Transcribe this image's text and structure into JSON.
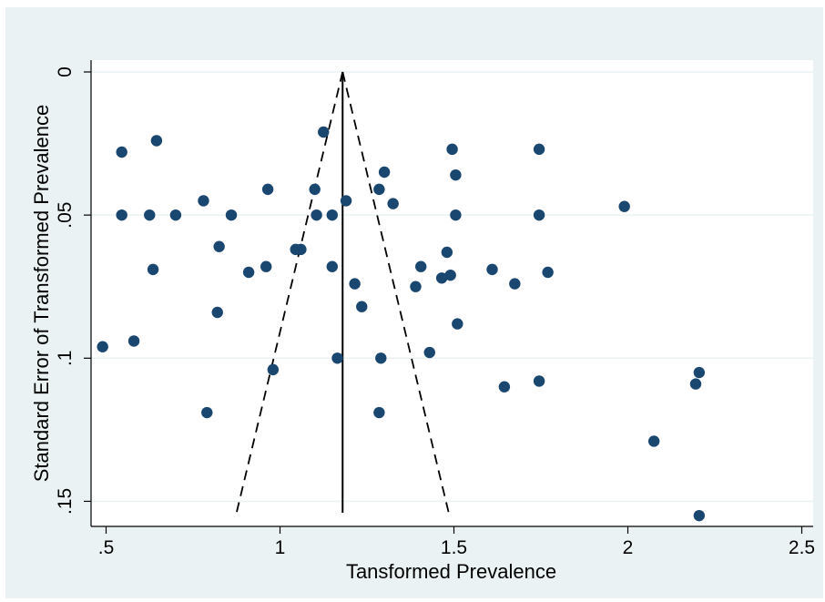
{
  "chart_data": {
    "type": "scatter",
    "title": "",
    "xlabel": "Tansformed Prevalence",
    "ylabel": "Standard Error of Transformed Prevalence",
    "xlim": [
      0.5,
      2.5
    ],
    "ylim": [
      0,
      0.155
    ],
    "y_reversed": true,
    "x_ticks": [
      {
        "value": 0.5,
        "label": ".5"
      },
      {
        "value": 1,
        "label": "1"
      },
      {
        "value": 1.5,
        "label": "1.5"
      },
      {
        "value": 2,
        "label": "2"
      },
      {
        "value": 2.5,
        "label": "2.5"
      }
    ],
    "y_ticks": [
      {
        "value": 0,
        "label": "0"
      },
      {
        "value": 0.05,
        "label": ".05"
      },
      {
        "value": 0.1,
        "label": ".1"
      },
      {
        "value": 0.15,
        "label": ".15"
      }
    ],
    "grid": "horizontal",
    "pooled_estimate": 1.18,
    "funnel_bottom_se": 0.154,
    "funnel_bottom_x": [
      0.875,
      1.485
    ],
    "marker_color": "#1a476f",
    "points": [
      {
        "x": 0.49,
        "y": 0.096
      },
      {
        "x": 0.545,
        "y": 0.028
      },
      {
        "x": 0.545,
        "y": 0.05
      },
      {
        "x": 0.58,
        "y": 0.094
      },
      {
        "x": 0.625,
        "y": 0.05
      },
      {
        "x": 0.635,
        "y": 0.069
      },
      {
        "x": 0.645,
        "y": 0.024
      },
      {
        "x": 0.7,
        "y": 0.05
      },
      {
        "x": 0.78,
        "y": 0.045
      },
      {
        "x": 0.79,
        "y": 0.119
      },
      {
        "x": 0.82,
        "y": 0.084
      },
      {
        "x": 0.825,
        "y": 0.061
      },
      {
        "x": 0.86,
        "y": 0.05
      },
      {
        "x": 0.91,
        "y": 0.07
      },
      {
        "x": 0.96,
        "y": 0.068
      },
      {
        "x": 0.965,
        "y": 0.041
      },
      {
        "x": 0.98,
        "y": 0.104
      },
      {
        "x": 1.045,
        "y": 0.062
      },
      {
        "x": 1.06,
        "y": 0.062
      },
      {
        "x": 1.1,
        "y": 0.041
      },
      {
        "x": 1.105,
        "y": 0.05
      },
      {
        "x": 1.125,
        "y": 0.021
      },
      {
        "x": 1.15,
        "y": 0.068
      },
      {
        "x": 1.15,
        "y": 0.05
      },
      {
        "x": 1.165,
        "y": 0.1
      },
      {
        "x": 1.19,
        "y": 0.045
      },
      {
        "x": 1.215,
        "y": 0.074
      },
      {
        "x": 1.235,
        "y": 0.082
      },
      {
        "x": 1.285,
        "y": 0.041
      },
      {
        "x": 1.285,
        "y": 0.119
      },
      {
        "x": 1.29,
        "y": 0.1
      },
      {
        "x": 1.3,
        "y": 0.035
      },
      {
        "x": 1.325,
        "y": 0.046
      },
      {
        "x": 1.39,
        "y": 0.075
      },
      {
        "x": 1.405,
        "y": 0.068
      },
      {
        "x": 1.43,
        "y": 0.098
      },
      {
        "x": 1.465,
        "y": 0.072
      },
      {
        "x": 1.48,
        "y": 0.063
      },
      {
        "x": 1.49,
        "y": 0.071
      },
      {
        "x": 1.495,
        "y": 0.027
      },
      {
        "x": 1.505,
        "y": 0.036
      },
      {
        "x": 1.505,
        "y": 0.05
      },
      {
        "x": 1.51,
        "y": 0.088
      },
      {
        "x": 1.61,
        "y": 0.069
      },
      {
        "x": 1.645,
        "y": 0.11
      },
      {
        "x": 1.675,
        "y": 0.074
      },
      {
        "x": 1.745,
        "y": 0.027
      },
      {
        "x": 1.745,
        "y": 0.05
      },
      {
        "x": 1.745,
        "y": 0.108
      },
      {
        "x": 1.77,
        "y": 0.07
      },
      {
        "x": 1.99,
        "y": 0.047
      },
      {
        "x": 2.075,
        "y": 0.129
      },
      {
        "x": 2.195,
        "y": 0.109
      },
      {
        "x": 2.205,
        "y": 0.105
      },
      {
        "x": 2.205,
        "y": 0.155
      }
    ]
  }
}
